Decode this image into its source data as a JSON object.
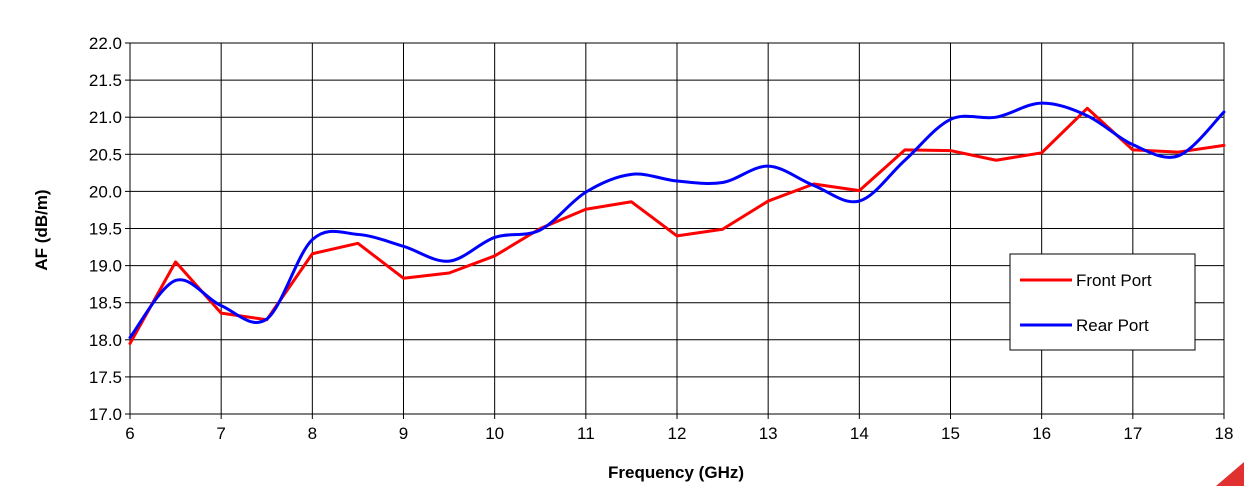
{
  "chart_data": {
    "type": "line",
    "title": "",
    "xlabel": "Frequency (GHz)",
    "ylabel": "AF (dB/m)",
    "xlim": [
      6,
      18
    ],
    "ylim": [
      17.0,
      22.0
    ],
    "x_ticks": [
      "6",
      "7",
      "8",
      "9",
      "10",
      "11",
      "12",
      "13",
      "14",
      "15",
      "16",
      "17",
      "18"
    ],
    "y_ticks": [
      "17.0",
      "17.5",
      "18.0",
      "18.5",
      "19.0",
      "19.5",
      "20.0",
      "20.5",
      "21.0",
      "21.5",
      "22.0"
    ],
    "grid": true,
    "legend_position": "right",
    "series": [
      {
        "name": "Front Port",
        "color": "#ff0000",
        "smooth": false,
        "x": [
          6,
          6.5,
          7,
          7.5,
          8,
          8.5,
          9,
          9.5,
          10,
          10.5,
          11,
          11.5,
          12,
          12.5,
          13,
          13.5,
          14,
          14.5,
          15,
          15.5,
          16,
          16.5,
          17,
          17.5,
          18
        ],
        "y": [
          17.95,
          19.05,
          18.36,
          18.27,
          19.16,
          19.3,
          18.83,
          18.9,
          19.13,
          19.5,
          19.76,
          19.86,
          19.4,
          19.49,
          19.87,
          20.1,
          20.01,
          20.56,
          20.55,
          20.42,
          20.52,
          21.12,
          20.56,
          20.53,
          20.62
        ]
      },
      {
        "name": "Rear Port",
        "color": "#0000ff",
        "smooth": true,
        "x": [
          6,
          6.5,
          7,
          7.5,
          8,
          8.5,
          9,
          9.5,
          10,
          10.5,
          11,
          11.5,
          12,
          12.5,
          13,
          13.5,
          14,
          14.5,
          15,
          15.5,
          16,
          16.5,
          17,
          17.5,
          18
        ],
        "y": [
          18.03,
          18.8,
          18.46,
          18.28,
          19.35,
          19.42,
          19.26,
          19.06,
          19.38,
          19.48,
          19.99,
          20.23,
          20.14,
          20.12,
          20.34,
          20.08,
          19.87,
          20.42,
          20.97,
          21.0,
          21.19,
          21.02,
          20.63,
          20.48,
          21.07
        ]
      }
    ]
  }
}
